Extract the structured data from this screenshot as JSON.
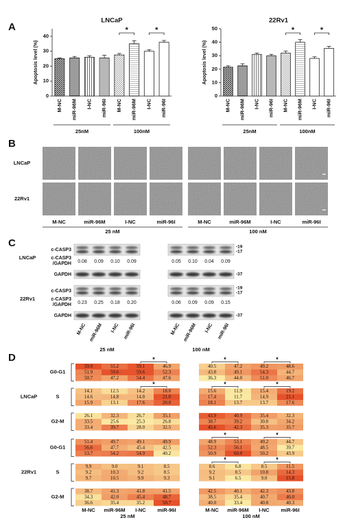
{
  "panel_labels": [
    "A",
    "B",
    "C",
    "D"
  ],
  "chart_data": [
    {
      "type": "bar",
      "title": "LNCaP",
      "y_label": "Apoptosis level (%)",
      "categories": [
        "M-NC",
        "miR-96M",
        "I-NC",
        "miR-96I",
        "M-NC",
        "miR-96M",
        "I-NC",
        "miR-96I"
      ],
      "groups": [
        "25nM",
        "100nM"
      ],
      "values": [
        25,
        25.5,
        26,
        25.5,
        27.5,
        35,
        30,
        36
      ],
      "errors": [
        0.5,
        1,
        1,
        1.8,
        1,
        2,
        1,
        1.2
      ],
      "color": "#222",
      "ylim": [
        0,
        45
      ],
      "yticks": [
        0,
        10,
        20,
        30,
        40
      ],
      "annotations": [
        "*",
        "*"
      ]
    },
    {
      "type": "bar",
      "title": "22Rv1",
      "y_label": "Apoptosis level (%)",
      "categories": [
        "M-NC",
        "miR-96M",
        "I-NC",
        "miR-96I",
        "M-NC",
        "miR-96M",
        "I-NC",
        "miR-96I"
      ],
      "groups": [
        "25nM",
        "100nM"
      ],
      "values": [
        21.5,
        22.5,
        31,
        30,
        32,
        40,
        28,
        35.5
      ],
      "errors": [
        1,
        1.5,
        1,
        1,
        1.5,
        2,
        1.2,
        1.5
      ],
      "color": "#222",
      "ylim": [
        0,
        50
      ],
      "yticks": [
        0,
        10,
        20,
        30,
        40,
        50
      ],
      "annotations": [
        "*",
        "*"
      ]
    }
  ],
  "images": {
    "rows": [
      "LNCaP",
      "22Rv1"
    ],
    "columns": [
      "M-NC",
      "miR-96M",
      "I-NC",
      "miR-96I",
      "M-NC",
      "miR-96M",
      "I-NC",
      "miR-96I"
    ],
    "groups": [
      "25 nM",
      "100 nM"
    ]
  },
  "blot": {
    "band_label": "c-CASP3",
    "ratio_label": [
      "c-CASP3",
      "/GAPDH"
    ],
    "control_label": "GAPDH",
    "markers": [
      "-19",
      "-17",
      "-37"
    ],
    "cell_lines": [
      {
        "name": "LNCaP",
        "ratios": [
          "0.08",
          "0.09",
          "0.10",
          "0.09",
          "0.05",
          "0.10",
          "0.04",
          "0.09"
        ]
      },
      {
        "name": "22Rv1",
        "ratios": [
          "0.23",
          "0.25",
          "0.18",
          "0.20",
          "0.06",
          "0.09",
          "0.09",
          "0.15"
        ]
      }
    ],
    "columns": [
      "M-NC",
      "miR-96M",
      "I-NC",
      "miR-96I",
      "M-NC",
      "miR-96M",
      "I-NC",
      "miR-96I"
    ],
    "groups": [
      "25 nM",
      "100 nM"
    ]
  },
  "heatmap": {
    "colors": [
      "#fbe9a3",
      "#e6512a"
    ],
    "star": "*",
    "columns": [
      "M-NC",
      "miR-96M",
      "I-NC",
      "miR-96I",
      "M-NC",
      "miR-96M",
      "I-NC",
      "miR-96I"
    ],
    "groups": [
      "25 nM",
      "100 nM"
    ],
    "cell_lines": [
      {
        "name": "LNCaP",
        "phases": [
          {
            "name": "G0-G1",
            "rows": [
              [
                "59.9",
                "55.2",
                "59.1",
                "46.9",
                "40.5",
                "47.2",
                "49.2",
                "48.6"
              ],
              [
                "51.9",
                "59.6",
                "59.6",
                "52.3",
                "43.8",
                "49.1",
                "54.3",
                "44.7"
              ],
              [
                "50.7",
                "47.2",
                "54.4",
                "47.6",
                "36.3",
                "44.0",
                "51.0",
                "46.7"
              ]
            ]
          },
          {
            "name": "S",
            "rows": [
              [
                "14.1",
                "12.5",
                "14.2",
                "18.0",
                "15.6",
                "11.9",
                "15.4",
                "19.2"
              ],
              [
                "14.6",
                "14.8",
                "14.8",
                "21.0",
                "17.4",
                "11.7",
                "14.9",
                "21.1"
              ],
              [
                "15.9",
                "13.1",
                "17.6",
                "20.0",
                "18.1",
                "13.7",
                "13.7",
                "17.6"
              ]
            ]
          },
          {
            "name": "G2-M",
            "rows": [
              [
                "26.1",
                "32.3",
                "26.7",
                "35.1",
                "43.9",
                "40.9",
                "35.4",
                "32.3"
              ],
              [
                "33.5",
                "25.6",
                "25.3",
                "26.8",
                "38.7",
                "39.2",
                "30.8",
                "34.2"
              ],
              [
                "33.4",
                "39.7",
                "28.0",
                "32.5",
                "45.6",
                "42.3",
                "35.3",
                "35.7"
              ]
            ]
          }
        ]
      },
      {
        "name": "22Rv1",
        "phases": [
          {
            "name": "G0-G1",
            "rows": [
              [
                "51.4",
                "49.7",
                "49.1",
                "49.9",
                "48.9",
                "53.1",
                "49.2",
                "44.7"
              ],
              [
                "56.6",
                "47.7",
                "45.4",
                "42.5",
                "52.3",
                "56.1",
                "48.5",
                "39.7"
              ],
              [
                "53.7",
                "54.2",
                "54.9",
                "40.2",
                "50.9",
                "60.0",
                "50.2",
                "43.9"
              ]
            ]
          },
          {
            "name": "S",
            "rows": [
              [
                "9.9",
                "9.0",
                "9.1",
                "8.5",
                "8.6",
                "6.8",
                "8.5",
                "11.5"
              ],
              [
                "9.2",
                "10.3",
                "9.2",
                "8.5",
                "9.2",
                "8.5",
                "10.8",
                "14.3"
              ],
              [
                "9.7",
                "10.5",
                "9.9",
                "9.3",
                "9.1",
                "6.5",
                "9.0",
                "15.8"
              ]
            ]
          },
          {
            "name": "G2-M",
            "rows": [
              [
                "38.7",
                "41.3",
                "41.8",
                "41.5",
                "42.5",
                "40.1",
                "42.3",
                "43.8"
              ],
              [
                "34.3",
                "42.0",
                "45.4",
                "48.7",
                "38.5",
                "35.4",
                "40.7",
                "46.0"
              ],
              [
                "36.6",
                "35.4",
                "35.2",
                "50.7",
                "40.0",
                "33.4",
                "40.8",
                "40.3"
              ]
            ]
          }
        ]
      }
    ]
  }
}
